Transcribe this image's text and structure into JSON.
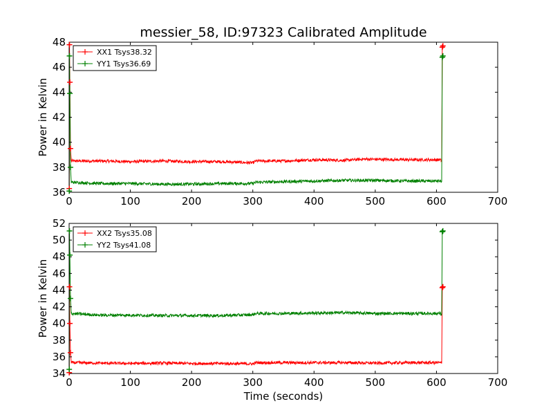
{
  "chart_data": [
    {
      "type": "line",
      "title": "messier_58, ID:97323 Calibrated Amplitude",
      "xlabel": "",
      "ylabel": "Power in Kelvin",
      "xlim": [
        0,
        700
      ],
      "ylim": [
        36,
        48
      ],
      "xticks": [
        0,
        100,
        200,
        300,
        400,
        500,
        600,
        700
      ],
      "yticks": [
        36,
        38,
        40,
        42,
        44,
        46,
        48
      ],
      "legend_position": "upper-left",
      "grid": false,
      "series": [
        {
          "name": "XX1 Tsys38.32",
          "color": "#ff0000",
          "marker": "+",
          "points": [
            [
              0.2,
              36.3
            ],
            [
              0.6,
              47.8
            ],
            [
              1.2,
              44.8
            ],
            [
              2.2,
              39.5
            ],
            [
              3.5,
              38.5
            ],
            [
              50,
              38.5
            ],
            [
              100,
              38.45
            ],
            [
              150,
              38.5
            ],
            [
              200,
              38.45
            ],
            [
              250,
              38.45
            ],
            [
              300,
              38.35
            ],
            [
              305,
              38.5
            ],
            [
              350,
              38.5
            ],
            [
              400,
              38.6
            ],
            [
              450,
              38.55
            ],
            [
              480,
              38.65
            ],
            [
              550,
              38.6
            ],
            [
              606,
              38.6
            ],
            [
              608.5,
              38.5
            ],
            [
              609.5,
              47.6
            ],
            [
              610.5,
              47.7
            ]
          ]
        },
        {
          "name": "YY1 Tsys36.69",
          "color": "#008000",
          "marker": "+",
          "points": [
            [
              0.2,
              36.1
            ],
            [
              0.6,
              46.9
            ],
            [
              1.2,
              43.9
            ],
            [
              2.2,
              38.0
            ],
            [
              3.5,
              36.8
            ],
            [
              50,
              36.7
            ],
            [
              100,
              36.7
            ],
            [
              150,
              36.65
            ],
            [
              200,
              36.65
            ],
            [
              250,
              36.7
            ],
            [
              300,
              36.7
            ],
            [
              305,
              36.8
            ],
            [
              350,
              36.85
            ],
            [
              400,
              36.9
            ],
            [
              450,
              36.95
            ],
            [
              500,
              36.95
            ],
            [
              550,
              36.9
            ],
            [
              606,
              36.9
            ],
            [
              608.5,
              36.85
            ],
            [
              609.5,
              46.8
            ],
            [
              610.5,
              46.9
            ]
          ]
        }
      ]
    },
    {
      "type": "line",
      "title": "",
      "xlabel": "Time (seconds)",
      "ylabel": "Power in Kelvin",
      "xlim": [
        0,
        700
      ],
      "ylim": [
        34,
        52
      ],
      "xticks": [
        0,
        100,
        200,
        300,
        400,
        500,
        600,
        700
      ],
      "yticks": [
        34,
        36,
        38,
        40,
        42,
        44,
        46,
        48,
        50,
        52
      ],
      "legend_position": "upper-left",
      "grid": false,
      "series": [
        {
          "name": "XX2 Tsys35.08",
          "color": "#ff0000",
          "marker": "+",
          "points": [
            [
              0.2,
              34.1
            ],
            [
              0.6,
              44.4
            ],
            [
              1.2,
              40.0
            ],
            [
              2.2,
              36.5
            ],
            [
              3.5,
              35.3
            ],
            [
              50,
              35.25
            ],
            [
              100,
              35.2
            ],
            [
              150,
              35.25
            ],
            [
              200,
              35.2
            ],
            [
              250,
              35.2
            ],
            [
              300,
              35.15
            ],
            [
              305,
              35.3
            ],
            [
              350,
              35.3
            ],
            [
              400,
              35.3
            ],
            [
              450,
              35.3
            ],
            [
              500,
              35.25
            ],
            [
              550,
              35.3
            ],
            [
              606,
              35.3
            ],
            [
              608.5,
              35.2
            ],
            [
              609.5,
              44.3
            ],
            [
              610.5,
              44.4
            ]
          ]
        },
        {
          "name": "YY2 Tsys41.08",
          "color": "#008000",
          "marker": "+",
          "points": [
            [
              0.2,
              34.5
            ],
            [
              0.6,
              51.1
            ],
            [
              1.2,
              48.2
            ],
            [
              2.2,
              43.0
            ],
            [
              3.5,
              41.2
            ],
            [
              50,
              41.0
            ],
            [
              100,
              41.0
            ],
            [
              150,
              40.95
            ],
            [
              200,
              40.95
            ],
            [
              250,
              40.95
            ],
            [
              300,
              41.05
            ],
            [
              305,
              41.2
            ],
            [
              350,
              41.2
            ],
            [
              400,
              41.25
            ],
            [
              450,
              41.3
            ],
            [
              500,
              41.2
            ],
            [
              550,
              41.2
            ],
            [
              606,
              41.2
            ],
            [
              608.5,
              41.1
            ],
            [
              609.5,
              51.0
            ],
            [
              610.5,
              51.1
            ]
          ]
        }
      ]
    }
  ]
}
